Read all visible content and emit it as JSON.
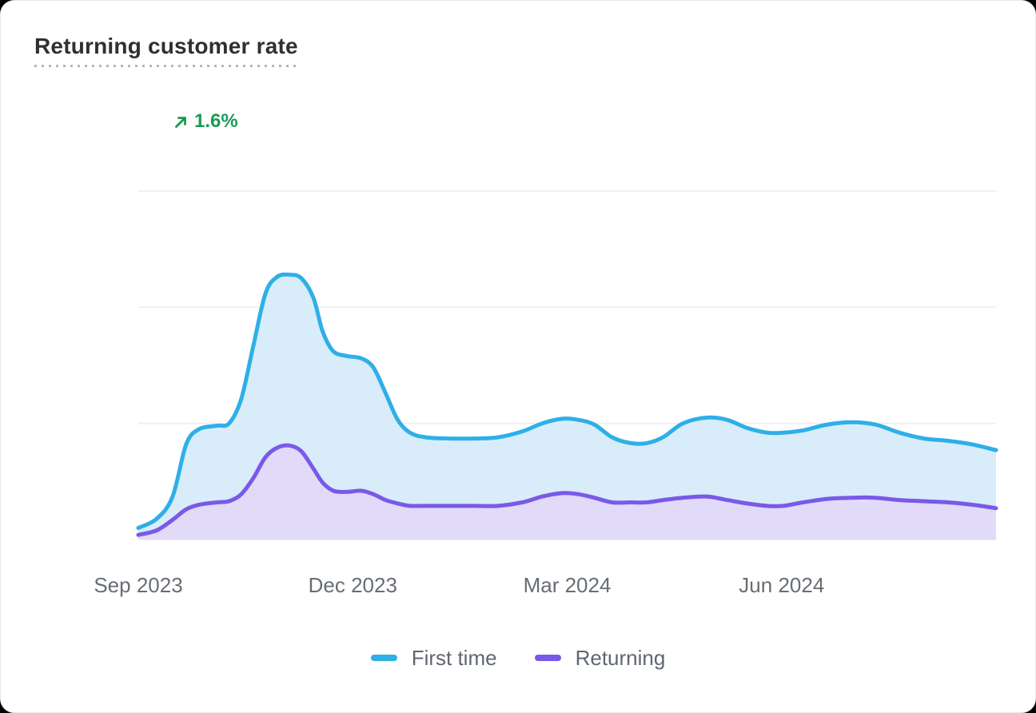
{
  "card": {
    "title": "Returning customer rate",
    "change": "1.6%",
    "change_direction": "up",
    "change_color": "#1a9b55"
  },
  "chart_data": {
    "type": "area",
    "title": "Returning customer rate",
    "subtitle_change": "1.6%",
    "x_unit": "months since Sep 2023",
    "x_range": [
      0,
      12
    ],
    "x_ticks": [
      {
        "m": 0,
        "label": "Sep 2023"
      },
      {
        "m": 3,
        "label": "Dec 2023"
      },
      {
        "m": 6,
        "label": "Mar 2024"
      },
      {
        "m": 9,
        "label": "Jun 2024"
      }
    ],
    "y_axis_labels_visible": false,
    "y_unit": "relative (1 unit = one gridline interval; axis unlabeled)",
    "ylim": [
      0,
      3
    ],
    "gridlines": [
      0,
      1,
      2,
      3
    ],
    "grid_on": true,
    "gridline_color": "#f0f0f0",
    "tick_color": "#676d73",
    "legend_position": "bottom",
    "series": [
      {
        "name": "First time",
        "color": "#2eafe8",
        "fill": "#d8ecf9",
        "points": [
          [
            0,
            0.1
          ],
          [
            0.26,
            0.18
          ],
          [
            0.48,
            0.37
          ],
          [
            0.67,
            0.82
          ],
          [
            0.85,
            0.95
          ],
          [
            1.1,
            0.98
          ],
          [
            1.27,
            1.0
          ],
          [
            1.44,
            1.21
          ],
          [
            1.61,
            1.67
          ],
          [
            1.78,
            2.12
          ],
          [
            1.94,
            2.26
          ],
          [
            2.11,
            2.28
          ],
          [
            2.28,
            2.25
          ],
          [
            2.45,
            2.08
          ],
          [
            2.58,
            1.79
          ],
          [
            2.73,
            1.62
          ],
          [
            2.92,
            1.58
          ],
          [
            3.12,
            1.56
          ],
          [
            3.29,
            1.48
          ],
          [
            3.46,
            1.26
          ],
          [
            3.63,
            1.03
          ],
          [
            3.8,
            0.92
          ],
          [
            4.02,
            0.88
          ],
          [
            4.36,
            0.87
          ],
          [
            4.7,
            0.87
          ],
          [
            5.03,
            0.88
          ],
          [
            5.37,
            0.93
          ],
          [
            5.65,
            1.0
          ],
          [
            5.93,
            1.04
          ],
          [
            6.16,
            1.03
          ],
          [
            6.38,
            0.99
          ],
          [
            6.63,
            0.88
          ],
          [
            6.89,
            0.83
          ],
          [
            7.11,
            0.83
          ],
          [
            7.34,
            0.88
          ],
          [
            7.62,
            1.0
          ],
          [
            7.96,
            1.05
          ],
          [
            8.24,
            1.03
          ],
          [
            8.52,
            0.96
          ],
          [
            8.8,
            0.92
          ],
          [
            9.02,
            0.92
          ],
          [
            9.3,
            0.94
          ],
          [
            9.64,
            0.99
          ],
          [
            9.98,
            1.01
          ],
          [
            10.31,
            0.99
          ],
          [
            10.65,
            0.92
          ],
          [
            10.99,
            0.87
          ],
          [
            11.33,
            0.85
          ],
          [
            11.66,
            0.82
          ],
          [
            12,
            0.77
          ]
        ]
      },
      {
        "name": "Returning",
        "color": "#7a59e8",
        "fill": "#e1daf8",
        "points": [
          [
            0,
            0.04
          ],
          [
            0.26,
            0.08
          ],
          [
            0.48,
            0.17
          ],
          [
            0.67,
            0.26
          ],
          [
            0.85,
            0.3
          ],
          [
            1.1,
            0.32
          ],
          [
            1.27,
            0.33
          ],
          [
            1.44,
            0.39
          ],
          [
            1.61,
            0.53
          ],
          [
            1.78,
            0.71
          ],
          [
            1.94,
            0.79
          ],
          [
            2.11,
            0.81
          ],
          [
            2.28,
            0.76
          ],
          [
            2.45,
            0.61
          ],
          [
            2.58,
            0.49
          ],
          [
            2.73,
            0.42
          ],
          [
            2.92,
            0.41
          ],
          [
            3.12,
            0.42
          ],
          [
            3.29,
            0.39
          ],
          [
            3.46,
            0.34
          ],
          [
            3.63,
            0.31
          ],
          [
            3.8,
            0.29
          ],
          [
            4.02,
            0.29
          ],
          [
            4.36,
            0.29
          ],
          [
            4.7,
            0.29
          ],
          [
            5.03,
            0.29
          ],
          [
            5.37,
            0.32
          ],
          [
            5.65,
            0.37
          ],
          [
            5.93,
            0.4
          ],
          [
            6.16,
            0.39
          ],
          [
            6.38,
            0.36
          ],
          [
            6.63,
            0.32
          ],
          [
            6.89,
            0.32
          ],
          [
            7.11,
            0.32
          ],
          [
            7.34,
            0.34
          ],
          [
            7.62,
            0.36
          ],
          [
            7.96,
            0.37
          ],
          [
            8.24,
            0.34
          ],
          [
            8.52,
            0.31
          ],
          [
            8.8,
            0.29
          ],
          [
            9.02,
            0.29
          ],
          [
            9.3,
            0.32
          ],
          [
            9.64,
            0.35
          ],
          [
            9.98,
            0.36
          ],
          [
            10.31,
            0.36
          ],
          [
            10.65,
            0.34
          ],
          [
            10.99,
            0.33
          ],
          [
            11.33,
            0.32
          ],
          [
            11.66,
            0.3
          ],
          [
            12,
            0.27
          ]
        ]
      }
    ]
  }
}
